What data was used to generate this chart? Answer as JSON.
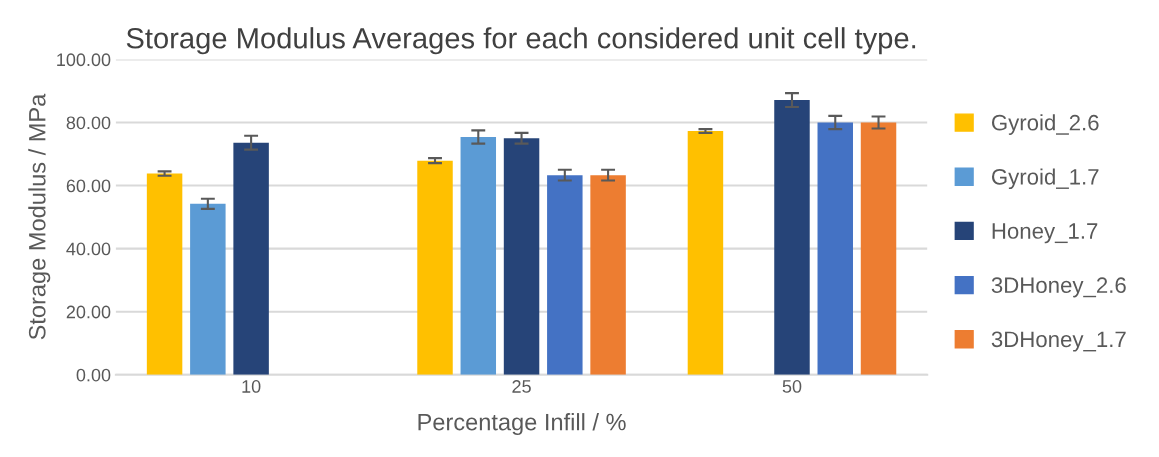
{
  "chart_data": {
    "type": "bar",
    "title": "Storage Modulus Averages for each considered unit cell type.",
    "xlabel": "Percentage Infill / %",
    "ylabel": "Storage Modulus / MPa",
    "categories": [
      "10",
      "25",
      "50"
    ],
    "series": [
      {
        "name": "Gyroid_2.6",
        "color": "#ffc000",
        "values": [
          63.8,
          67.9,
          77.3
        ],
        "errors": [
          0.7,
          0.8,
          0.6
        ]
      },
      {
        "name": "Gyroid_1.7",
        "color": "#5b9bd5",
        "values": [
          54.2,
          75.4,
          null
        ],
        "errors": [
          1.6,
          2.1,
          null
        ]
      },
      {
        "name": "Honey_1.7",
        "color": "#264478",
        "values": [
          73.6,
          75.0,
          87.1
        ],
        "errors": [
          2.2,
          1.7,
          2.2
        ]
      },
      {
        "name": "3DHoney_2.6",
        "color": "#4472c4",
        "values": [
          null,
          63.3,
          80.0
        ],
        "errors": [
          null,
          1.7,
          2.1
        ]
      },
      {
        "name": "3DHoney_1.7",
        "color": "#ed7d31",
        "values": [
          null,
          63.3,
          80.0
        ],
        "errors": [
          null,
          1.7,
          1.9
        ]
      }
    ],
    "ylim": [
      0,
      100
    ],
    "yticks": [
      {
        "value": 0,
        "label": "0.00"
      },
      {
        "value": 20,
        "label": "20.00"
      },
      {
        "value": 40,
        "label": "40.00"
      },
      {
        "value": 60,
        "label": "60.00"
      },
      {
        "value": 80,
        "label": "80.00"
      },
      {
        "value": 100,
        "label": "100.00"
      }
    ],
    "grid": "y",
    "legend": "right"
  }
}
